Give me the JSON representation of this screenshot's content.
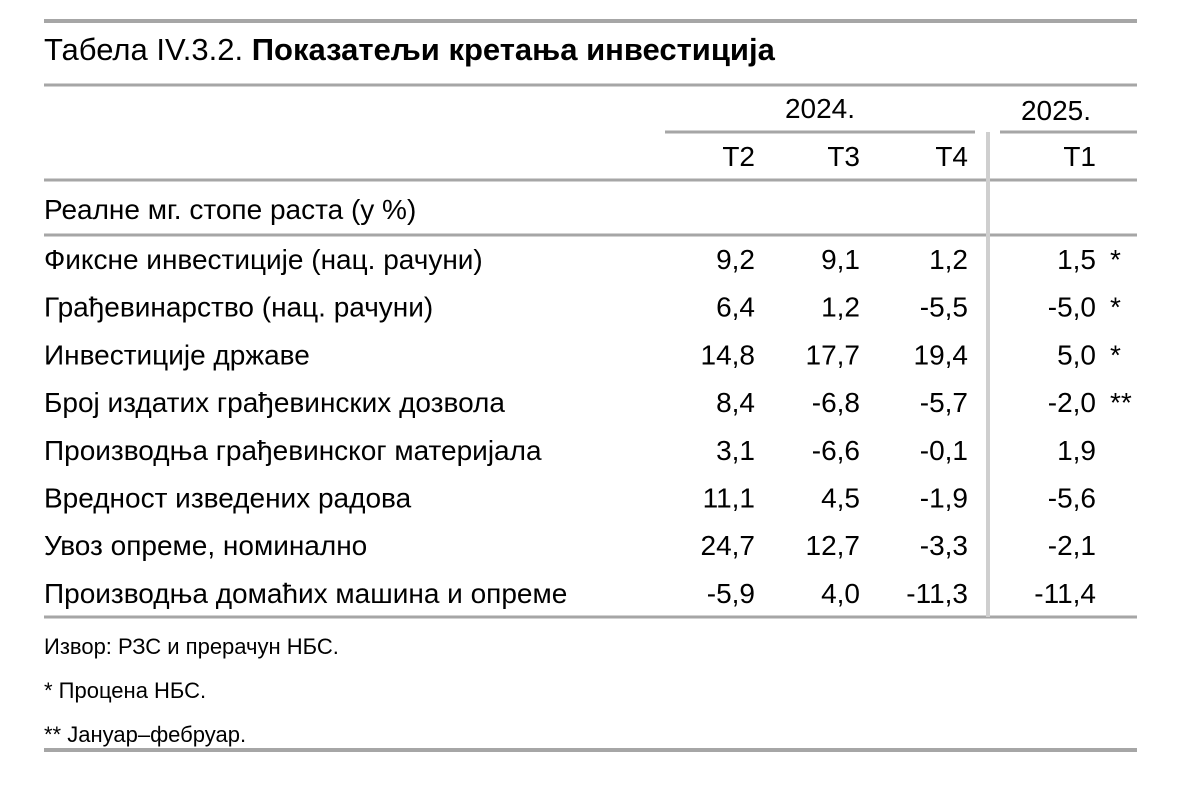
{
  "title": {
    "prefix": "Табела IV.3.2.",
    "main": "Показатељи кретања инвестиција"
  },
  "header": {
    "years": [
      "2024.",
      "2025."
    ],
    "columns": [
      "Т2",
      "Т3",
      "Т4",
      "Т1"
    ]
  },
  "section": "Реалне мг. стопе раста (у %)",
  "table": {
    "rows": [
      {
        "label": "Фиксне инвестиције (нац. рачуни)",
        "values": [
          "9,2",
          "9,1",
          "1,2",
          "1,5"
        ],
        "note": "*"
      },
      {
        "label": "Грађевинарство (нац. рачуни)",
        "values": [
          "6,4",
          "1,2",
          "-5,5",
          "-5,0"
        ],
        "note": "*"
      },
      {
        "label": "Инвестиције државе",
        "values": [
          "14,8",
          "17,7",
          "19,4",
          "5,0"
        ],
        "note": "*"
      },
      {
        "label": "Број издатих грађевинских дозвола",
        "values": [
          "8,4",
          "-6,8",
          "-5,7",
          "-2,0"
        ],
        "note": "**"
      },
      {
        "label": "Производња грађевинског материјала",
        "values": [
          "3,1",
          "-6,6",
          "-0,1",
          "1,9"
        ]
      },
      {
        "label": "Вредност изведених радова",
        "values": [
          "11,1",
          "4,5",
          "-1,9",
          "-5,6"
        ]
      },
      {
        "label": "Увоз опреме, номинално",
        "values": [
          "24,7",
          "12,7",
          "-3,3",
          "-2,1"
        ]
      },
      {
        "label": "Производња домаћих машина и опреме",
        "values": [
          "-5,9",
          "4,0",
          "-11,3",
          "-11,4"
        ]
      }
    ]
  },
  "footnotes": [
    "Извор: РЗС и прерачун НБС.",
    "* Процена НБС.",
    "** Јануар–фебруар."
  ]
}
